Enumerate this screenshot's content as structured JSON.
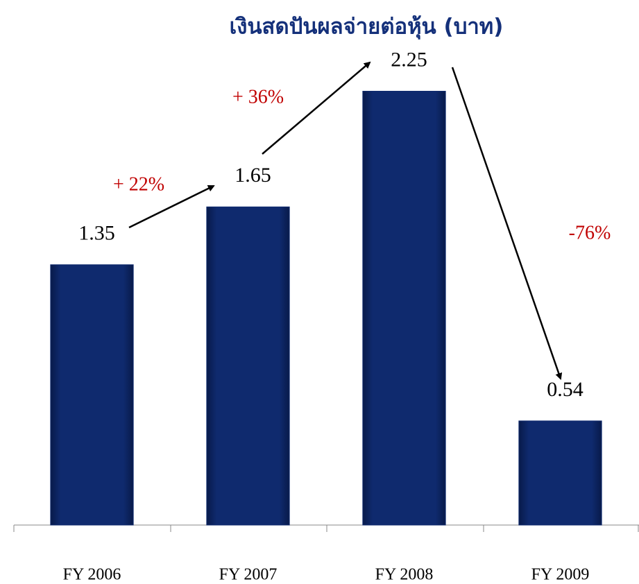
{
  "chart_data": {
    "type": "bar",
    "title": "เงินสดปันผลจ่ายต่อหุ้น (บาท)",
    "categories": [
      "FY 2006",
      "FY 2007",
      "FY 2008",
      "FY 2009"
    ],
    "values": [
      1.35,
      1.65,
      2.25,
      0.54
    ],
    "color": "#0f2a6e",
    "ylim": [
      0,
      2.5
    ],
    "annotations": [
      "+ 22%",
      "+ 36%",
      "-76%"
    ]
  }
}
